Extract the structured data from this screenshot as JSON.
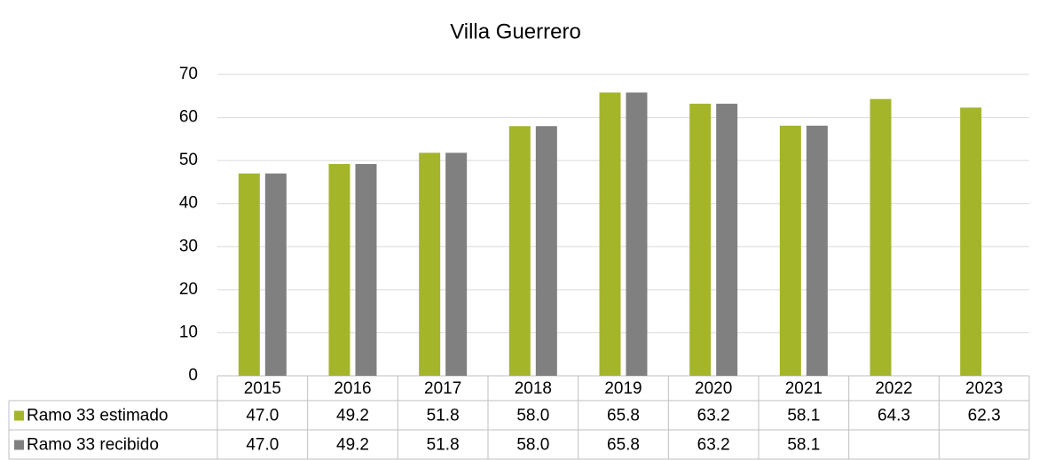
{
  "chart_data": {
    "type": "bar",
    "title": "Villa Guerrero",
    "categories": [
      "2015",
      "2016",
      "2017",
      "2018",
      "2019",
      "2020",
      "2021",
      "2022",
      "2023"
    ],
    "series": [
      {
        "name": "Ramo 33 estimado",
        "color": "#a5b52a",
        "values": [
          47.0,
          49.2,
          51.8,
          58.0,
          65.8,
          63.2,
          58.1,
          64.3,
          62.3
        ],
        "value_labels": [
          "47.0",
          "49.2",
          "51.8",
          "58.0",
          "65.8",
          "63.2",
          "58.1",
          "64.3",
          "62.3"
        ]
      },
      {
        "name": "Ramo 33 recibido",
        "color": "#808080",
        "values": [
          47.0,
          49.2,
          51.8,
          58.0,
          65.8,
          63.2,
          58.1,
          null,
          null
        ],
        "value_labels": [
          "47.0",
          "49.2",
          "51.8",
          "58.0",
          "65.8",
          "63.2",
          "58.1",
          null,
          null
        ]
      }
    ],
    "ylim": [
      0,
      70
    ],
    "yticks": [
      0,
      10,
      20,
      30,
      40,
      50,
      60,
      70
    ],
    "grid": true,
    "legend": "table"
  }
}
